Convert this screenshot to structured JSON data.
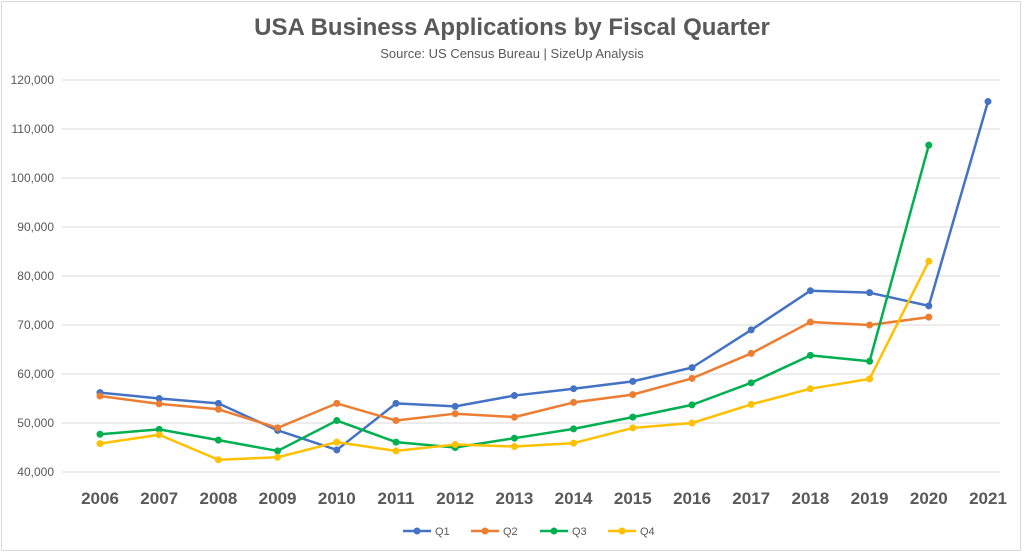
{
  "chart_data": {
    "type": "line",
    "title": "USA Business Applications by Fiscal Quarter",
    "subtitle": "Source: US Census Bureau |  SizeUp Analysis",
    "xlabel": "",
    "ylabel": "",
    "x": [
      "2006",
      "2007",
      "2008",
      "2009",
      "2010",
      "2011",
      "2012",
      "2013",
      "2014",
      "2015",
      "2016",
      "2017",
      "2018",
      "2019",
      "2020",
      "2021"
    ],
    "ylim": [
      40000,
      120000
    ],
    "yticks": [
      40000,
      50000,
      60000,
      70000,
      80000,
      90000,
      100000,
      110000,
      120000
    ],
    "ytick_labels": [
      "40,000",
      "50,000",
      "60,000",
      "70,000",
      "80,000",
      "90,000",
      "100,000",
      "110,000",
      "120,000"
    ],
    "grid": true,
    "legend_position": "bottom",
    "series": [
      {
        "name": "Q1",
        "color": "#4472c4",
        "values": [
          56200,
          55000,
          54000,
          48500,
          44500,
          54000,
          53400,
          55600,
          57000,
          58500,
          61300,
          69000,
          77000,
          76600,
          73900,
          115600
        ]
      },
      {
        "name": "Q2",
        "color": "#ed7d31",
        "values": [
          55500,
          53900,
          52800,
          49000,
          54000,
          50500,
          51900,
          51200,
          54200,
          55800,
          59100,
          64200,
          70600,
          70000,
          71600,
          null
        ]
      },
      {
        "name": "Q3",
        "color": "#00b050",
        "values": [
          47700,
          48700,
          46500,
          44300,
          50500,
          46100,
          45000,
          46900,
          48800,
          51200,
          53700,
          58200,
          63800,
          62600,
          106700,
          null
        ]
      },
      {
        "name": "Q4",
        "color": "#ffc000",
        "values": [
          45800,
          47600,
          42500,
          43000,
          46100,
          44300,
          45600,
          45200,
          45900,
          49000,
          50000,
          53800,
          57000,
          59000,
          83000,
          null
        ]
      }
    ]
  }
}
